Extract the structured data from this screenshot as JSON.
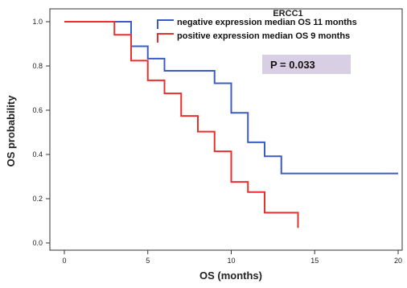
{
  "chart_data": {
    "type": "line",
    "title": "",
    "xlabel": "OS (months)",
    "ylabel": "OS probability",
    "xlim": [
      0,
      20
    ],
    "ylim": [
      0,
      1.0
    ],
    "x_ticks": [
      {
        "value": 0,
        "label": "0"
      },
      {
        "value": 5,
        "label": "5"
      },
      {
        "value": 10,
        "label": "10"
      },
      {
        "value": 15,
        "label": "15"
      },
      {
        "value": 20,
        "label": "20"
      }
    ],
    "y_ticks": [
      {
        "value": 0,
        "label": "0.0"
      },
      {
        "value": 0.2,
        "label": "0.2"
      },
      {
        "value": 0.4,
        "label": "0.4"
      },
      {
        "value": 0.6,
        "label": "0.6"
      },
      {
        "value": 0.8,
        "label": "0.8"
      },
      {
        "value": 1.0,
        "label": "1.0"
      }
    ],
    "grid": false,
    "step": true,
    "legend": {
      "title": "ERCC1",
      "position": "top-right"
    },
    "annotation": {
      "text": "P = 0.033",
      "x": 14.5,
      "y": 0.82,
      "background": "#d9cfe4"
    },
    "series": [
      {
        "name": "negative expression median OS 11 months",
        "color": "#3c5cc4",
        "x": [
          0,
          4,
          5,
          6,
          9,
          10,
          11,
          12,
          13,
          20
        ],
        "y": [
          1.0,
          0.889,
          0.833,
          0.778,
          0.722,
          0.588,
          0.455,
          0.392,
          0.314,
          0.314
        ]
      },
      {
        "name": "positive expression median OS 9 months",
        "color": "#e8302e",
        "x": [
          0,
          3,
          4,
          5,
          6,
          7,
          8,
          9,
          10,
          11,
          12,
          14,
          14
        ],
        "y": [
          1.0,
          0.941,
          0.824,
          0.735,
          0.676,
          0.574,
          0.503,
          0.414,
          0.276,
          0.23,
          0.137,
          0.137,
          0.068
        ]
      }
    ]
  }
}
